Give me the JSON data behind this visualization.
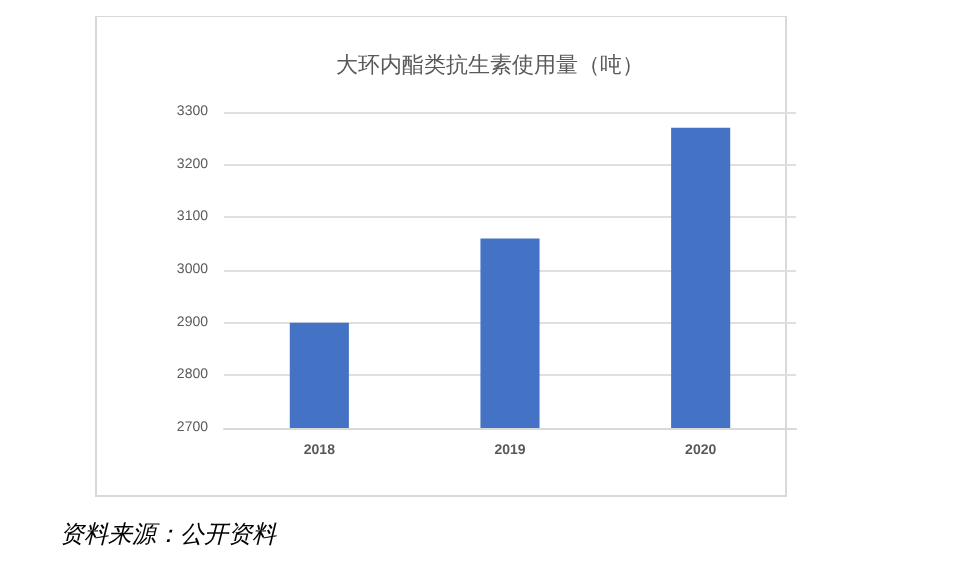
{
  "chart_data": {
    "type": "bar",
    "title": "大环内酯类抗生素使用量（吨）",
    "categories": [
      "2018",
      "2019",
      "2020"
    ],
    "values": [
      2900,
      3060,
      3270
    ],
    "color": "#4472c4",
    "ylim": [
      2700,
      3300
    ],
    "yticks": [
      2700,
      2800,
      2900,
      3000,
      3100,
      3200,
      3300
    ],
    "grid": "y",
    "annotations": [
      "资料来源：公开资料"
    ]
  }
}
